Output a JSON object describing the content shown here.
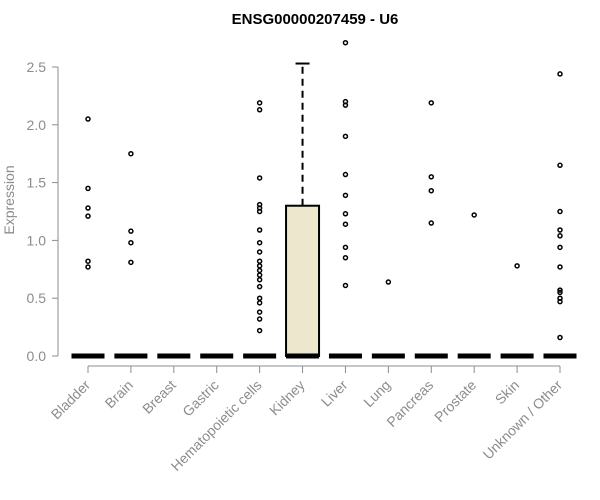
{
  "chart_data": {
    "type": "box",
    "title": "ENSG00000207459 - U6",
    "xlabel": "",
    "ylabel": "Expression",
    "ylim": [
      0,
      2.5
    ],
    "yticks": [
      "0.0",
      "0.5",
      "1.0",
      "1.5",
      "2.0",
      "2.5"
    ],
    "grid": false,
    "legend": "none",
    "categories": [
      "Bladder",
      "Brain",
      "Breast",
      "Gastric",
      "Hematopoietic cells",
      "Kidney",
      "Liver",
      "Lung",
      "Pancreas",
      "Prostate",
      "Skin",
      "Unknown / Other"
    ],
    "boxes": [
      {
        "category": "Bladder",
        "q1": 0,
        "median": 0,
        "q3": 0,
        "whisker_low": 0,
        "whisker_high": 0
      },
      {
        "category": "Brain",
        "q1": 0,
        "median": 0,
        "q3": 0,
        "whisker_low": 0,
        "whisker_high": 0
      },
      {
        "category": "Breast",
        "q1": 0,
        "median": 0,
        "q3": 0,
        "whisker_low": 0,
        "whisker_high": 0
      },
      {
        "category": "Gastric",
        "q1": 0,
        "median": 0,
        "q3": 0,
        "whisker_low": 0,
        "whisker_high": 0
      },
      {
        "category": "Hematopoietic cells",
        "q1": 0,
        "median": 0,
        "q3": 0,
        "whisker_low": 0,
        "whisker_high": 0
      },
      {
        "category": "Kidney",
        "q1": 0,
        "median": 0,
        "q3": 1.3,
        "whisker_low": 0,
        "whisker_high": 2.53
      },
      {
        "category": "Liver",
        "q1": 0,
        "median": 0,
        "q3": 0,
        "whisker_low": 0,
        "whisker_high": 0
      },
      {
        "category": "Lung",
        "q1": 0,
        "median": 0,
        "q3": 0,
        "whisker_low": 0,
        "whisker_high": 0
      },
      {
        "category": "Pancreas",
        "q1": 0,
        "median": 0,
        "q3": 0,
        "whisker_low": 0,
        "whisker_high": 0
      },
      {
        "category": "Prostate",
        "q1": 0,
        "median": 0,
        "q3": 0,
        "whisker_low": 0,
        "whisker_high": 0
      },
      {
        "category": "Skin",
        "q1": 0,
        "median": 0,
        "q3": 0,
        "whisker_low": 0,
        "whisker_high": 0
      },
      {
        "category": "Unknown / Other",
        "q1": 0,
        "median": 0,
        "q3": 0,
        "whisker_low": 0,
        "whisker_high": 0
      }
    ],
    "outliers": [
      {
        "category": "Bladder",
        "values": [
          2.05,
          1.45,
          1.28,
          1.21,
          0.82,
          0.77
        ]
      },
      {
        "category": "Brain",
        "values": [
          1.75,
          1.08,
          0.98,
          0.81
        ]
      },
      {
        "category": "Breast",
        "values": []
      },
      {
        "category": "Gastric",
        "values": []
      },
      {
        "category": "Hematopoietic cells",
        "values": [
          2.19,
          2.13,
          1.54,
          1.31,
          1.28,
          1.25,
          1.09,
          0.98,
          0.9,
          0.82,
          0.78,
          0.74,
          0.7,
          0.66,
          0.6,
          0.5,
          0.46,
          0.38,
          0.32,
          0.22
        ]
      },
      {
        "category": "Kidney",
        "values": []
      },
      {
        "category": "Liver",
        "values": [
          2.71,
          2.2,
          2.17,
          1.9,
          1.57,
          1.39,
          1.23,
          1.14,
          0.94,
          0.85,
          0.61
        ]
      },
      {
        "category": "Lung",
        "values": [
          0.64
        ]
      },
      {
        "category": "Pancreas",
        "values": [
          2.19,
          1.55,
          1.43,
          1.15
        ]
      },
      {
        "category": "Prostate",
        "values": [
          1.22
        ]
      },
      {
        "category": "Skin",
        "values": [
          0.78
        ]
      },
      {
        "category": "Unknown / Other",
        "values": [
          2.44,
          1.65,
          1.25,
          1.09,
          1.04,
          0.94,
          0.77,
          0.57,
          0.55,
          0.5,
          0.47,
          0.16
        ]
      }
    ],
    "colors": {
      "box_fill": "#ede7cd",
      "box_stroke": "#000000",
      "axis": "#8c8c8c",
      "tick_label": "#8c8c8c",
      "ylabel": "#8c8c8c",
      "title": "#000000"
    }
  }
}
